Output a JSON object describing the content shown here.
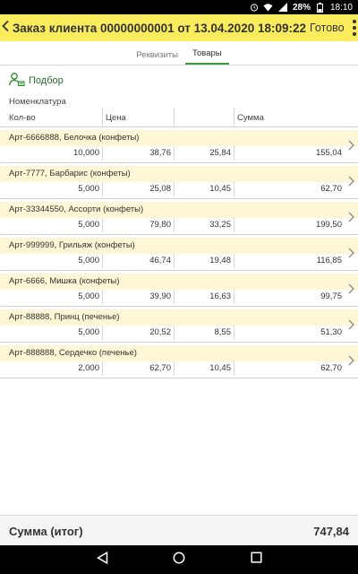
{
  "status_bar": {
    "battery": "28%",
    "time": "18:10",
    "icons": [
      "alarm-icon",
      "wifi-icon",
      "signal-icon",
      "battery-icon"
    ]
  },
  "header": {
    "title": "Заказ клиента 00000000001 от 13.04.2020 18:09:22",
    "done_label": "Готово",
    "background_color": "#fbec5d"
  },
  "tabs": [
    {
      "label": "Реквизиты",
      "active": false
    },
    {
      "label": "Товары",
      "active": true
    }
  ],
  "toolbar": {
    "pick_label": "Подбор"
  },
  "table": {
    "header_name": "Номенклатура",
    "header_qty": "Кол-во",
    "header_price": "Цена",
    "header_sum": "Сумма",
    "rows": [
      {
        "name": "Арт-6666888, Белочка (конфеты)",
        "qty": "10,000",
        "price": "38,76",
        "discount": "25,84",
        "sum": "155,04"
      },
      {
        "name": "Арт-7777, Барбарис (конфеты)",
        "qty": "5,000",
        "price": "25,08",
        "discount": "10,45",
        "sum": "62,70"
      },
      {
        "name": "Арт-33344550, Ассорти (конфеты)",
        "qty": "5,000",
        "price": "79,80",
        "discount": "33,25",
        "sum": "199,50"
      },
      {
        "name": "Арт-999999, Грильяж (конфеты)",
        "qty": "5,000",
        "price": "46,74",
        "discount": "19,48",
        "sum": "116,85"
      },
      {
        "name": "Арт-6666, Мишка (конфеты)",
        "qty": "5,000",
        "price": "39,90",
        "discount": "16,63",
        "sum": "99,75"
      },
      {
        "name": "Арт-88888, Принц (печенье)",
        "qty": "5,000",
        "price": "20,52",
        "discount": "8,55",
        "sum": "51,30"
      },
      {
        "name": "Арт-888888, Сердечко (печенье)",
        "qty": "2,000",
        "price": "62,70",
        "discount": "10,45",
        "sum": "62,70"
      }
    ]
  },
  "footer": {
    "total_label": "Сумма (итог)",
    "total_value": "747,84"
  },
  "colors": {
    "accent_green": "#3c9a3c",
    "row_band": "#fdf7d6"
  }
}
